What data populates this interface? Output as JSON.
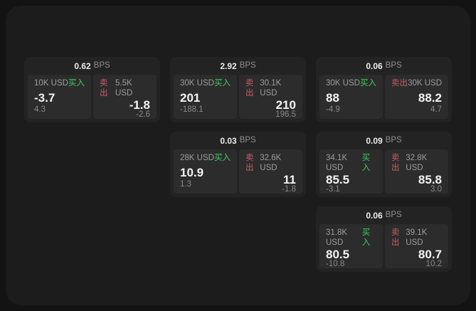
{
  "labels": {
    "bps_unit": "BPS",
    "buy": "买入",
    "sell": "卖出"
  },
  "colors": {
    "outer_background": "#131313",
    "panel_background": "#1c1c1c",
    "card_background": "#232323",
    "cell_background": "#2c2c2c",
    "buy_green": "#3ecf63",
    "sell_red": "#c85c66"
  },
  "cards": [
    {
      "row": 0,
      "col": 0,
      "bps": "0.62",
      "buy": {
        "amount": "10K USD",
        "value": "-3.7",
        "sub": "4.3"
      },
      "sell": {
        "amount": "5.5K USD",
        "value": "-1.8",
        "sub": "-2.6"
      }
    },
    {
      "row": 0,
      "col": 1,
      "bps": "2.92",
      "buy": {
        "amount": "30K USD",
        "value": "201",
        "sub": "-188.1"
      },
      "sell": {
        "amount": "30.1K USD",
        "value": "210",
        "sub": "196.5"
      }
    },
    {
      "row": 0,
      "col": 2,
      "bps": "0.06",
      "buy": {
        "amount": "30K USD",
        "value": "88",
        "sub": "-4.9"
      },
      "sell": {
        "amount": "30K USD",
        "value": "88.2",
        "sub": "4.7"
      }
    },
    {
      "row": 1,
      "col": 1,
      "bps": "0.03",
      "buy": {
        "amount": "28K USD",
        "value": "10.9",
        "sub": "1.3"
      },
      "sell": {
        "amount": "32.6K USD",
        "value": "11",
        "sub": "-1.8"
      }
    },
    {
      "row": 1,
      "col": 2,
      "bps": "0.09",
      "buy": {
        "amount": "34.1K USD",
        "value": "85.5",
        "sub": "-3.1"
      },
      "sell": {
        "amount": "32.8K USD",
        "value": "85.8",
        "sub": "3.0"
      }
    },
    {
      "row": 2,
      "col": 2,
      "bps": "0.06",
      "buy": {
        "amount": "31.8K USD",
        "value": "80.5",
        "sub": "-10.8"
      },
      "sell": {
        "amount": "39.1K USD",
        "value": "80.7",
        "sub": "10.2"
      }
    }
  ]
}
